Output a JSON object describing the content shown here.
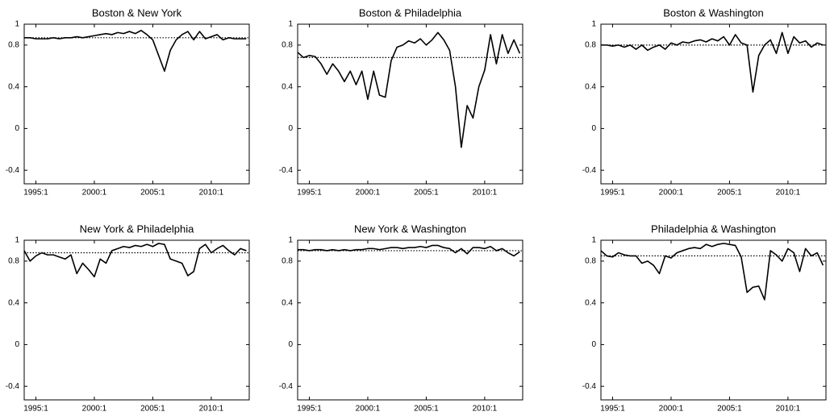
{
  "chart_data": [
    {
      "type": "line",
      "title": "Boston & New York",
      "color": "#000000",
      "reference_line": 0.87,
      "x": [
        1994,
        1994.5,
        1995,
        1995.5,
        1996,
        1996.5,
        1997,
        1997.5,
        1998,
        1998.5,
        1999,
        1999.5,
        2000,
        2000.5,
        2001,
        2001.5,
        2002,
        2002.5,
        2003,
        2003.5,
        2004,
        2004.5,
        2005,
        2005.5,
        2006,
        2006.5,
        2007,
        2007.5,
        2008,
        2008.5,
        2009,
        2009.5,
        2010,
        2010.5,
        2011,
        2011.5,
        2012,
        2012.5,
        2013
      ],
      "values": [
        0.87,
        0.87,
        0.86,
        0.86,
        0.86,
        0.87,
        0.86,
        0.87,
        0.87,
        0.88,
        0.87,
        0.88,
        0.89,
        0.9,
        0.91,
        0.9,
        0.92,
        0.91,
        0.93,
        0.91,
        0.94,
        0.9,
        0.85,
        0.7,
        0.55,
        0.75,
        0.85,
        0.9,
        0.93,
        0.85,
        0.93,
        0.86,
        0.88,
        0.9,
        0.85,
        0.87,
        0.86,
        0.86,
        0.86
      ],
      "xlim": [
        1994,
        2013.25
      ],
      "ylim": [
        -0.53,
        1
      ],
      "xticks": [
        {
          "value": 1995,
          "label": "1995:1"
        },
        {
          "value": 2000,
          "label": "2000:1"
        },
        {
          "value": 2005,
          "label": "2005:1"
        },
        {
          "value": 2010,
          "label": "2010:1"
        }
      ],
      "yticks": [
        -0.4,
        0,
        0.4,
        0.8,
        1
      ]
    },
    {
      "type": "line",
      "title": "Boston & Philadelphia",
      "color": "#000000",
      "reference_line": 0.68,
      "x": [
        1994,
        1994.5,
        1995,
        1995.5,
        1996,
        1996.5,
        1997,
        1997.5,
        1998,
        1998.5,
        1999,
        1999.5,
        2000,
        2000.5,
        2001,
        2001.5,
        2002,
        2002.5,
        2003,
        2003.5,
        2004,
        2004.5,
        2005,
        2005.5,
        2006,
        2006.5,
        2007,
        2007.5,
        2008,
        2008.5,
        2009,
        2009.5,
        2010,
        2010.5,
        2011,
        2011.5,
        2012,
        2012.5,
        2013
      ],
      "values": [
        0.73,
        0.68,
        0.7,
        0.69,
        0.62,
        0.52,
        0.62,
        0.55,
        0.45,
        0.55,
        0.42,
        0.55,
        0.28,
        0.55,
        0.32,
        0.3,
        0.65,
        0.78,
        0.8,
        0.84,
        0.82,
        0.86,
        0.8,
        0.85,
        0.92,
        0.85,
        0.75,
        0.4,
        -0.18,
        0.22,
        0.1,
        0.4,
        0.56,
        0.9,
        0.62,
        0.9,
        0.72,
        0.85,
        0.72
      ],
      "xlim": [
        1994,
        2013.25
      ],
      "ylim": [
        -0.53,
        1
      ],
      "xticks": [
        {
          "value": 1995,
          "label": "1995:1"
        },
        {
          "value": 2000,
          "label": "2000:1"
        },
        {
          "value": 2005,
          "label": "2005:1"
        },
        {
          "value": 2010,
          "label": "2010:1"
        }
      ],
      "yticks": [
        -0.4,
        0,
        0.4,
        0.8,
        1
      ]
    },
    {
      "type": "line",
      "title": "Boston & Washington",
      "color": "#000000",
      "reference_line": 0.8,
      "x": [
        1994,
        1994.5,
        1995,
        1995.5,
        1996,
        1996.5,
        1997,
        1997.5,
        1998,
        1998.5,
        1999,
        1999.5,
        2000,
        2000.5,
        2001,
        2001.5,
        2002,
        2002.5,
        2003,
        2003.5,
        2004,
        2004.5,
        2005,
        2005.5,
        2006,
        2006.5,
        2007,
        2007.5,
        2008,
        2008.5,
        2009,
        2009.5,
        2010,
        2010.5,
        2011,
        2011.5,
        2012,
        2012.5,
        2013
      ],
      "values": [
        0.8,
        0.8,
        0.79,
        0.8,
        0.78,
        0.8,
        0.76,
        0.8,
        0.75,
        0.78,
        0.8,
        0.76,
        0.82,
        0.8,
        0.83,
        0.82,
        0.84,
        0.85,
        0.83,
        0.86,
        0.84,
        0.88,
        0.8,
        0.9,
        0.82,
        0.8,
        0.35,
        0.7,
        0.8,
        0.85,
        0.72,
        0.92,
        0.72,
        0.88,
        0.82,
        0.84,
        0.78,
        0.82,
        0.8
      ],
      "xlim": [
        1994,
        2013.25
      ],
      "ylim": [
        -0.53,
        1
      ],
      "xticks": [
        {
          "value": 1995,
          "label": "1995:1"
        },
        {
          "value": 2000,
          "label": "2000:1"
        },
        {
          "value": 2005,
          "label": "2005:1"
        },
        {
          "value": 2010,
          "label": "2010:1"
        }
      ],
      "yticks": [
        -0.4,
        0,
        0.4,
        0.8,
        1
      ]
    },
    {
      "type": "line",
      "title": "New York & Philadelphia",
      "color": "#000000",
      "reference_line": 0.88,
      "x": [
        1994,
        1994.5,
        1995,
        1995.5,
        1996,
        1996.5,
        1997,
        1997.5,
        1998,
        1998.5,
        1999,
        1999.5,
        2000,
        2000.5,
        2001,
        2001.5,
        2002,
        2002.5,
        2003,
        2003.5,
        2004,
        2004.5,
        2005,
        2005.5,
        2006,
        2006.5,
        2007,
        2007.5,
        2008,
        2008.5,
        2009,
        2009.5,
        2010,
        2010.5,
        2011,
        2011.5,
        2012,
        2012.5,
        2013
      ],
      "values": [
        0.9,
        0.8,
        0.85,
        0.88,
        0.86,
        0.86,
        0.84,
        0.82,
        0.86,
        0.68,
        0.78,
        0.72,
        0.65,
        0.82,
        0.78,
        0.9,
        0.92,
        0.94,
        0.93,
        0.95,
        0.94,
        0.96,
        0.94,
        0.97,
        0.96,
        0.82,
        0.8,
        0.78,
        0.66,
        0.7,
        0.92,
        0.96,
        0.88,
        0.92,
        0.95,
        0.9,
        0.86,
        0.92,
        0.9
      ],
      "xlim": [
        1994,
        2013.25
      ],
      "ylim": [
        -0.53,
        1
      ],
      "xticks": [
        {
          "value": 1995,
          "label": "1995:1"
        },
        {
          "value": 2000,
          "label": "2000:1"
        },
        {
          "value": 2005,
          "label": "2005:1"
        },
        {
          "value": 2010,
          "label": "2010:1"
        }
      ],
      "yticks": [
        -0.4,
        0,
        0.4,
        0.8,
        1
      ]
    },
    {
      "type": "line",
      "title": "New York & Washington",
      "color": "#000000",
      "reference_line": 0.9,
      "x": [
        1994,
        1994.5,
        1995,
        1995.5,
        1996,
        1996.5,
        1997,
        1997.5,
        1998,
        1998.5,
        1999,
        1999.5,
        2000,
        2000.5,
        2001,
        2001.5,
        2002,
        2002.5,
        2003,
        2003.5,
        2004,
        2004.5,
        2005,
        2005.5,
        2006,
        2006.5,
        2007,
        2007.5,
        2008,
        2008.5,
        2009,
        2009.5,
        2010,
        2010.5,
        2011,
        2011.5,
        2012,
        2012.5,
        2013
      ],
      "values": [
        0.91,
        0.91,
        0.9,
        0.91,
        0.91,
        0.9,
        0.91,
        0.9,
        0.91,
        0.9,
        0.91,
        0.91,
        0.92,
        0.92,
        0.91,
        0.92,
        0.93,
        0.93,
        0.92,
        0.93,
        0.93,
        0.94,
        0.93,
        0.95,
        0.95,
        0.93,
        0.92,
        0.88,
        0.92,
        0.87,
        0.93,
        0.93,
        0.92,
        0.94,
        0.9,
        0.92,
        0.88,
        0.85,
        0.89
      ],
      "xlim": [
        1994,
        2013.25
      ],
      "ylim": [
        -0.53,
        1
      ],
      "xticks": [
        {
          "value": 1995,
          "label": "1995:1"
        },
        {
          "value": 2000,
          "label": "2000:1"
        },
        {
          "value": 2005,
          "label": "2005:1"
        },
        {
          "value": 2010,
          "label": "2010:1"
        }
      ],
      "yticks": [
        -0.4,
        0,
        0.4,
        0.8,
        1
      ]
    },
    {
      "type": "line",
      "title": "Philadelphia & Washington",
      "color": "#000000",
      "reference_line": 0.85,
      "x": [
        1994,
        1994.5,
        1995,
        1995.5,
        1996,
        1996.5,
        1997,
        1997.5,
        1998,
        1998.5,
        1999,
        1999.5,
        2000,
        2000.5,
        2001,
        2001.5,
        2002,
        2002.5,
        2003,
        2003.5,
        2004,
        2004.5,
        2005,
        2005.5,
        2006,
        2006.5,
        2007,
        2007.5,
        2008,
        2008.5,
        2009,
        2009.5,
        2010,
        2010.5,
        2011,
        2011.5,
        2012,
        2012.5,
        2013
      ],
      "values": [
        0.9,
        0.85,
        0.84,
        0.88,
        0.86,
        0.85,
        0.85,
        0.78,
        0.8,
        0.76,
        0.68,
        0.85,
        0.83,
        0.88,
        0.9,
        0.92,
        0.93,
        0.92,
        0.96,
        0.94,
        0.96,
        0.97,
        0.96,
        0.95,
        0.84,
        0.5,
        0.55,
        0.56,
        0.43,
        0.9,
        0.86,
        0.8,
        0.92,
        0.88,
        0.7,
        0.92,
        0.85,
        0.88,
        0.76
      ],
      "xlim": [
        1994,
        2013.25
      ],
      "ylim": [
        -0.53,
        1
      ],
      "xticks": [
        {
          "value": 1995,
          "label": "1995:1"
        },
        {
          "value": 2000,
          "label": "2000:1"
        },
        {
          "value": 2005,
          "label": "2005:1"
        },
        {
          "value": 2010,
          "label": "2010:1"
        }
      ],
      "yticks": [
        -0.4,
        0,
        0.4,
        0.8,
        1
      ]
    }
  ]
}
